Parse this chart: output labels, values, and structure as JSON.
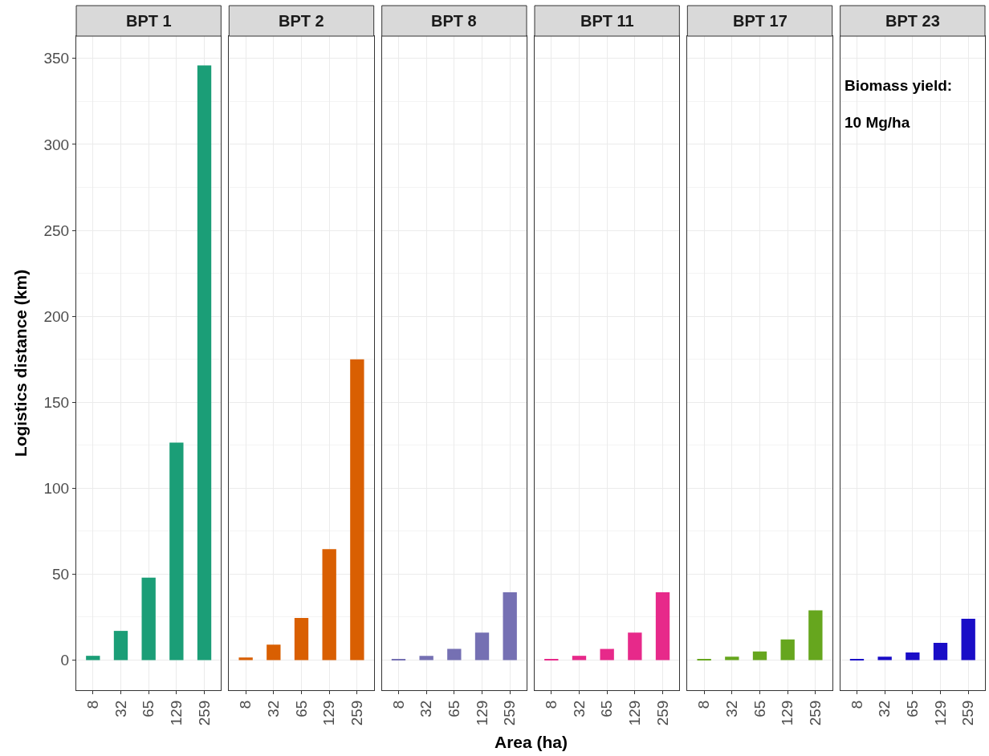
{
  "chart_data": [
    {
      "type": "bar",
      "title": "BPT 1",
      "ylabel": "Logistics distance (km)",
      "categories": [
        "8",
        "32",
        "65",
        "129",
        "259"
      ],
      "values": [
        2.5,
        17,
        48,
        126.5,
        346
      ],
      "color": "#1b9e77",
      "ylim": [
        -17.5,
        363
      ],
      "yticks": [
        0,
        50,
        100,
        150,
        200,
        250,
        300,
        350
      ],
      "grid": true
    },
    {
      "type": "bar",
      "title": "BPT 2",
      "categories": [
        "8",
        "32",
        "65",
        "129",
        "259"
      ],
      "values": [
        1.5,
        9,
        24.5,
        64.5,
        175
      ],
      "color": "#d95f02",
      "ylim": [
        -17.5,
        363
      ],
      "yticks": [
        0,
        50,
        100,
        150,
        200,
        250,
        300,
        350
      ],
      "grid": true,
      "tick_labels": "x"
    },
    {
      "type": "bar",
      "title": "BPT 8",
      "categories": [
        "8",
        "32",
        "65",
        "129",
        "259"
      ],
      "values": [
        0.5,
        2.5,
        6.5,
        16,
        39.5
      ],
      "color": "#7570b3",
      "ylim": [
        -17.5,
        363
      ],
      "yticks": [
        0,
        50,
        100,
        150,
        200,
        250,
        300,
        350
      ],
      "grid": true,
      "tick_labels": "x",
      "xlabel": "Area (ha)"
    },
    {
      "type": "bar",
      "title": "BPT 11",
      "categories": [
        "8",
        "32",
        "65",
        "129",
        "259"
      ],
      "values": [
        0.5,
        2.5,
        6.5,
        16,
        39.5
      ],
      "color": "#e7298a",
      "ylim": [
        -17.5,
        363
      ],
      "yticks": [
        0,
        50,
        100,
        150,
        200,
        250,
        300,
        350
      ],
      "grid": true,
      "tick_labels": "x"
    },
    {
      "type": "bar",
      "title": "BPT 17",
      "categories": [
        "8",
        "32",
        "65",
        "129",
        "259"
      ],
      "values": [
        0.5,
        2,
        5,
        12,
        29
      ],
      "color": "#66a61e",
      "ylim": [
        -17.5,
        363
      ],
      "yticks": [
        0,
        50,
        100,
        150,
        200,
        250,
        300,
        350
      ],
      "grid": true,
      "tick_labels": "x"
    },
    {
      "type": "bar",
      "title": "BPT 23",
      "categories": [
        "8",
        "32",
        "65",
        "129",
        "259"
      ],
      "values": [
        0.5,
        2,
        4.5,
        10,
        24
      ],
      "color": "#1a0dc7",
      "ylim": [
        -17.5,
        363
      ],
      "yticks": [
        0,
        50,
        100,
        150,
        200,
        250,
        300,
        350
      ],
      "grid": true,
      "tick_labels": "x",
      "annotations": [
        "Biomass yield:",
        "10 Mg/ha"
      ]
    }
  ]
}
